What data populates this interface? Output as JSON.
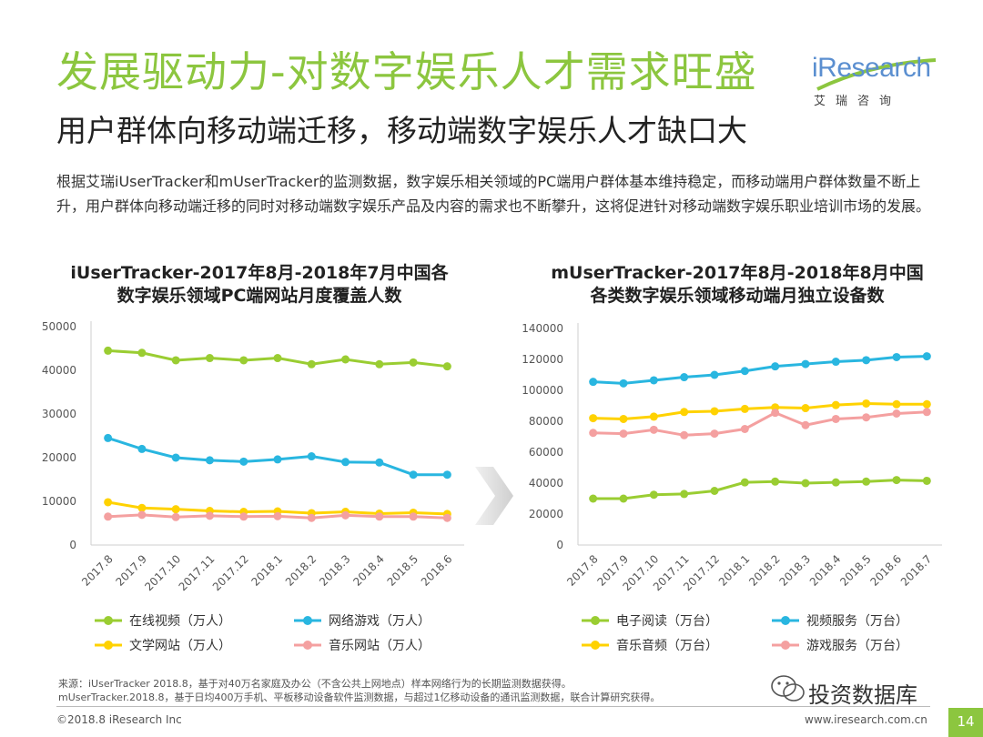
{
  "header": {
    "title": "发展驱动力-对数字娱乐人才需求旺盛",
    "subtitle": "用户群体向移动端迁移，移动端数字娱乐人才缺口大"
  },
  "logo": {
    "text": "iResearch",
    "cn": "艾瑞咨询"
  },
  "body_text": "根据艾瑞iUserTracker和mUserTracker的监测数据，数字娱乐相关领域的PC端用户群体基本维持稳定，而移动端用户群体数量不断上升，用户群体向移动端迁移的同时对移动端数字娱乐产品及内容的需求也不断攀升，这将促进针对移动端数字娱乐职业培训市场的发展。",
  "chart_data": [
    {
      "type": "line",
      "title": "iUserTracker-2017年8月-2018年7月中国各数字娱乐领域PC端网站月度覆盖人数",
      "title_lines": [
        "iUserTracker-2017年8月-2018年7月中国各",
        "数字娱乐领域PC端网站月度覆盖人数"
      ],
      "categories": [
        "2017.8",
        "2017.9",
        "2017.10",
        "2017.11",
        "2017.12",
        "2018.1",
        "2018.2",
        "2018.3",
        "2018.4",
        "2018.5",
        "2018.6"
      ],
      "ylim": [
        0,
        50000
      ],
      "yticks": [
        0,
        10000,
        20000,
        30000,
        40000,
        50000
      ],
      "series": [
        {
          "name": "在线视频（万人）",
          "color": "#9acd32",
          "values": [
            44500,
            44000,
            42300,
            42800,
            42300,
            42800,
            41400,
            42500,
            41400,
            41800,
            40900
          ]
        },
        {
          "name": "网络游戏（万人）",
          "color": "#29b6e0",
          "values": [
            24500,
            22000,
            20000,
            19400,
            19100,
            19600,
            20300,
            19000,
            18900,
            16100,
            16100
          ]
        },
        {
          "name": "文学网站（万人）",
          "color": "#ffd200",
          "values": [
            9800,
            8500,
            8200,
            7800,
            7600,
            7700,
            7300,
            7600,
            7200,
            7400,
            7100
          ]
        },
        {
          "name": "音乐网站（万人）",
          "color": "#f4a0a0",
          "values": [
            6500,
            6900,
            6400,
            6700,
            6500,
            6600,
            6200,
            6800,
            6500,
            6500,
            6200
          ]
        }
      ]
    },
    {
      "type": "line",
      "title": "mUserTracker-2017年8月-2018年8月中国各类数字娱乐领域移动端月独立设备数",
      "title_lines": [
        "mUserTracker-2017年8月-2018年8月中国",
        "各类数字娱乐领域移动端月独立设备数"
      ],
      "categories": [
        "2017.8",
        "2017.9",
        "2017.10",
        "2017.11",
        "2017.12",
        "2018.1",
        "2018.2",
        "2018.3",
        "2018.4",
        "2018.5",
        "2018.6",
        "2018.7"
      ],
      "ylim": [
        0,
        140000
      ],
      "yticks": [
        0,
        20000,
        40000,
        60000,
        80000,
        100000,
        120000,
        140000
      ],
      "series": [
        {
          "name": "电子阅读（万台）",
          "color": "#9acd32",
          "values": [
            30000,
            30000,
            32500,
            33000,
            35000,
            40500,
            41000,
            40000,
            40500,
            41000,
            42000,
            41500
          ]
        },
        {
          "name": "视频服务（万台）",
          "color": "#29b6e0",
          "values": [
            105500,
            104500,
            106500,
            108500,
            110000,
            112500,
            115500,
            117000,
            118500,
            119500,
            121500,
            122000
          ]
        },
        {
          "name": "音乐音频（万台）",
          "color": "#ffd200",
          "values": [
            82000,
            81500,
            83000,
            86000,
            86500,
            88000,
            89000,
            88500,
            90500,
            91500,
            91000,
            91000
          ]
        },
        {
          "name": "游戏服务（万台）",
          "color": "#f4a0a0",
          "values": [
            72500,
            72000,
            74500,
            71000,
            72000,
            75000,
            85500,
            77500,
            81500,
            82500,
            85000,
            86000
          ]
        }
      ]
    }
  ],
  "footer": {
    "source_line1": "来源：iUserTracker 2018.8，基于对40万名家庭及办公（不含公共上网地点）样本网络行为的长期监测数据获得。",
    "source_line2": "mUserTracker.2018.8，基于日均400万手机、平板移动设备软件监测数据，与超过1亿移动设备的通讯监测数据，联合计算研究获得。",
    "copyright": "©2018.8 iResearch Inc",
    "website": "www.iresearch.com.cn",
    "page": "14",
    "watermark": "投资数据库"
  }
}
